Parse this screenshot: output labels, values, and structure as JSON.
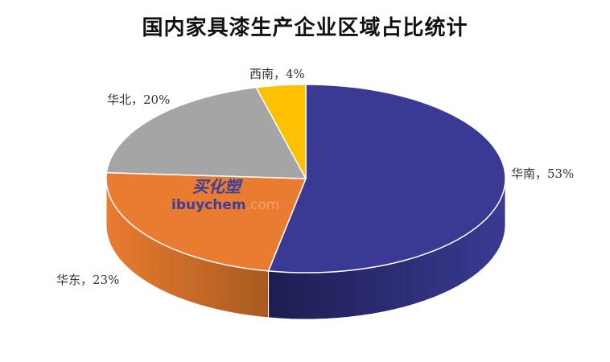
{
  "chart_data": {
    "type": "pie",
    "style": "3d",
    "title": "国内家具漆生产企业区域占比统计",
    "categories": [
      "华南",
      "华东",
      "华北",
      "西南"
    ],
    "values": [
      53,
      23,
      20,
      4
    ],
    "labels": [
      "华南，53%",
      "华东，23%",
      "华北，20%",
      "西南，4%"
    ],
    "colors": [
      "#3A3A94",
      "#E97C30",
      "#A5A5A5",
      "#FFC000"
    ],
    "side_colors": [
      "#1D1D50",
      "#A85A20",
      "#7A7A7A",
      "#C09000"
    ]
  },
  "watermark": {
    "cn": "买化塑",
    "domain_main": "ibuychem",
    "domain_tld": ".com"
  }
}
